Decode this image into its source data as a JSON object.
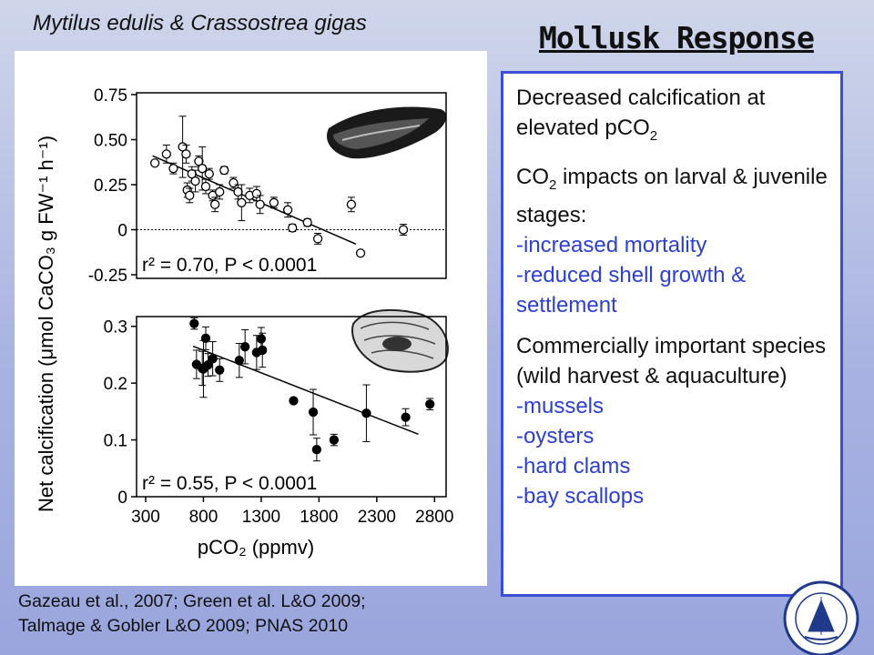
{
  "species_title": "Mytilus edulis  & Crassostrea gigas",
  "slide_title": "Mollusk Response",
  "citation_line1": "Gazeau et al., 2007; Green et al. L&O 2009;",
  "citation_line2": "Talmage & Gobler L&O 2009; PNAS 2010",
  "info": {
    "p1_text": "Decreased calcification at elevated pCO",
    "p1_sub": "2",
    "p2_text_a": "CO",
    "p2_sub": "2",
    "p2_text_b": " impacts on larval & juvenile stages:",
    "p2_items": [
      "-increased mortality",
      "-reduced shell growth & settlement"
    ],
    "p3_text": "Commercially important species (wild harvest & aquaculture)",
    "p3_items": [
      "-mussels",
      "-oysters",
      "-hard clams",
      "-bay scallops"
    ]
  },
  "colors": {
    "accent_blue": "#2b3fd4",
    "box_border": "#3a4fd6"
  },
  "icons": {
    "mussel": "mussel-illustration",
    "oyster": "oyster-illustration",
    "logo": "woods-hole-logo"
  },
  "chart_data": [
    {
      "type": "scatter",
      "name": "mussel",
      "ylabel": "Net calcification (μmol CaCO₃ g FW⁻¹ h⁻¹)",
      "xlabel": "pCO₂ (ppmv)",
      "ylim": [
        -0.25,
        0.75
      ],
      "xlim": [
        300,
        2900
      ],
      "yticks": [
        -0.25,
        0,
        0.25,
        0.5,
        0.75
      ],
      "ytick_labels": [
        "-0.25",
        "0",
        "0.25",
        "0.50",
        "0.75"
      ],
      "marker": "open",
      "annotation": "r² = 0.70, P < 0.0001",
      "zero_line": true,
      "fit": [
        [
          360,
          0.41
        ],
        [
          2120,
          -0.08
        ]
      ],
      "points": [
        {
          "x": 380,
          "y": 0.37,
          "e": 0.0
        },
        {
          "x": 480,
          "y": 0.42,
          "e": 0.05
        },
        {
          "x": 540,
          "y": 0.34,
          "e": 0.03
        },
        {
          "x": 620,
          "y": 0.46,
          "e": 0.17
        },
        {
          "x": 650,
          "y": 0.42,
          "e": 0.05
        },
        {
          "x": 660,
          "y": 0.22,
          "e": 0.04
        },
        {
          "x": 680,
          "y": 0.19,
          "e": 0.04
        },
        {
          "x": 700,
          "y": 0.31,
          "e": 0.04
        },
        {
          "x": 730,
          "y": 0.27,
          "e": 0.06
        },
        {
          "x": 760,
          "y": 0.38,
          "e": 0.03
        },
        {
          "x": 790,
          "y": 0.34,
          "e": 0.12
        },
        {
          "x": 820,
          "y": 0.24,
          "e": 0.04
        },
        {
          "x": 850,
          "y": 0.31,
          "e": 0.03
        },
        {
          "x": 880,
          "y": 0.19,
          "e": 0.03
        },
        {
          "x": 900,
          "y": 0.14,
          "e": 0.04
        },
        {
          "x": 940,
          "y": 0.21,
          "e": 0.04
        },
        {
          "x": 980,
          "y": 0.33,
          "e": 0.02
        },
        {
          "x": 1060,
          "y": 0.26,
          "e": 0.03
        },
        {
          "x": 1100,
          "y": 0.21,
          "e": 0.04
        },
        {
          "x": 1130,
          "y": 0.15,
          "e": 0.1
        },
        {
          "x": 1200,
          "y": 0.19,
          "e": 0.04
        },
        {
          "x": 1260,
          "y": 0.2,
          "e": 0.04
        },
        {
          "x": 1290,
          "y": 0.14,
          "e": 0.05
        },
        {
          "x": 1410,
          "y": 0.15,
          "e": 0.03
        },
        {
          "x": 1530,
          "y": 0.11,
          "e": 0.04
        },
        {
          "x": 1570,
          "y": 0.01,
          "e": 0.02
        },
        {
          "x": 1700,
          "y": 0.04,
          "e": 0.02
        },
        {
          "x": 1790,
          "y": -0.05,
          "e": 0.03
        },
        {
          "x": 2080,
          "y": 0.14,
          "e": 0.04
        },
        {
          "x": 2160,
          "y": -0.13,
          "e": 0.0
        },
        {
          "x": 2530,
          "y": 0.0,
          "e": 0.03
        }
      ]
    },
    {
      "type": "scatter",
      "name": "oyster",
      "ylim": [
        0,
        0.33
      ],
      "xlim": [
        300,
        2900
      ],
      "yticks": [
        0,
        0.1,
        0.2,
        0.3
      ],
      "ytick_labels": [
        "0",
        "0.1",
        "0.2",
        "0.3"
      ],
      "xticks": [
        300,
        800,
        1300,
        1800,
        2300,
        2800
      ],
      "xtick_labels": [
        "300",
        "800",
        "1300",
        "1800",
        "2300",
        "2800"
      ],
      "marker": "filled",
      "annotation": "r² = 0.55, P < 0.0001",
      "fit": [
        [
          710,
          0.265
        ],
        [
          2660,
          0.11
        ]
      ],
      "points": [
        {
          "x": 720,
          "y": 0.305,
          "e": 0.01
        },
        {
          "x": 740,
          "y": 0.233,
          "e": 0.025
        },
        {
          "x": 790,
          "y": 0.226,
          "e": 0.03
        },
        {
          "x": 800,
          "y": 0.225,
          "e": 0.05
        },
        {
          "x": 820,
          "y": 0.279,
          "e": 0.02
        },
        {
          "x": 840,
          "y": 0.232,
          "e": 0.02
        },
        {
          "x": 880,
          "y": 0.243,
          "e": 0.03
        },
        {
          "x": 940,
          "y": 0.223,
          "e": 0.02
        },
        {
          "x": 1110,
          "y": 0.24,
          "e": 0.03
        },
        {
          "x": 1160,
          "y": 0.264,
          "e": 0.03
        },
        {
          "x": 1260,
          "y": 0.254,
          "e": 0.03
        },
        {
          "x": 1300,
          "y": 0.278,
          "e": 0.02
        },
        {
          "x": 1310,
          "y": 0.258,
          "e": 0.03
        },
        {
          "x": 1580,
          "y": 0.169,
          "e": 0.0
        },
        {
          "x": 1750,
          "y": 0.149,
          "e": 0.04
        },
        {
          "x": 1780,
          "y": 0.083,
          "e": 0.02
        },
        {
          "x": 1930,
          "y": 0.1,
          "e": 0.01
        },
        {
          "x": 2210,
          "y": 0.147,
          "e": 0.05
        },
        {
          "x": 2550,
          "y": 0.14,
          "e": 0.015
        },
        {
          "x": 2760,
          "y": 0.163,
          "e": 0.01
        }
      ]
    }
  ]
}
